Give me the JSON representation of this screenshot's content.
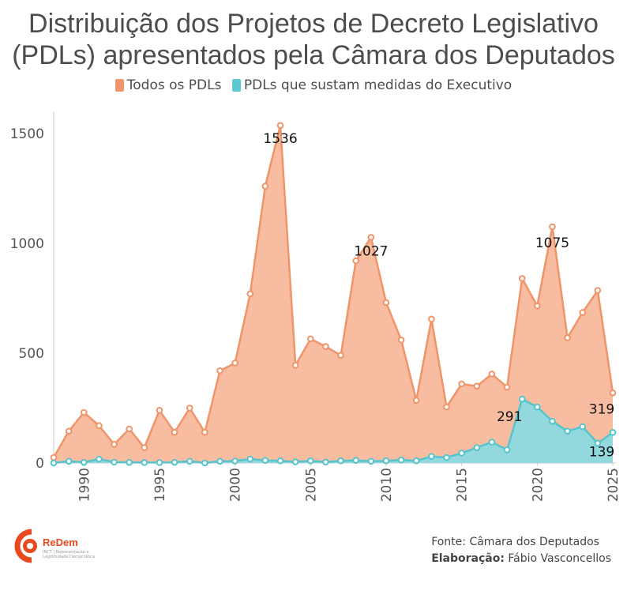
{
  "title_line1": "Distribuição dos Projetos de Decreto Legislativo",
  "title_line2": "(PDLs) apresentados pela Câmara dos Deputados",
  "legend": [
    {
      "label": "Todos os PDLs",
      "color": "#f2956b"
    },
    {
      "label": "PDLs que sustam medidas do Executivo",
      "color": "#5cc8d0"
    }
  ],
  "footer": {
    "source": "Fonte: Câmara dos Deputados",
    "credit_label": "Elaboração:",
    "credit_name": "Fábio Vasconcellos"
  },
  "logo": {
    "name": "ReDem",
    "subtitle": "INCT | Representação e Legitimidade Democrática"
  },
  "chart_data": {
    "type": "area",
    "title": "Distribuição dos Projetos de Decreto Legislativo (PDLs) apresentados pela Câmara dos Deputados",
    "x": [
      1988,
      1989,
      1990,
      1991,
      1992,
      1993,
      1994,
      1995,
      1996,
      1997,
      1998,
      1999,
      2000,
      2001,
      2002,
      2003,
      2004,
      2005,
      2006,
      2007,
      2008,
      2009,
      2010,
      2011,
      2012,
      2013,
      2014,
      2015,
      2016,
      2017,
      2018,
      2019,
      2020,
      2021,
      2022,
      2023,
      2024,
      2025
    ],
    "series": [
      {
        "name": "Todos os PDLs",
        "color": "#f2956b",
        "values": [
          25,
          145,
          230,
          170,
          85,
          155,
          70,
          240,
          140,
          250,
          140,
          420,
          455,
          770,
          1260,
          1536,
          445,
          565,
          530,
          490,
          920,
          1027,
          730,
          560,
          285,
          655,
          255,
          360,
          350,
          405,
          345,
          840,
          715,
          1075,
          570,
          685,
          785,
          319
        ]
      },
      {
        "name": "PDLs que sustam medidas do Executivo",
        "color": "#5cc8d0",
        "values": [
          0,
          8,
          3,
          18,
          4,
          3,
          2,
          2,
          3,
          8,
          0,
          8,
          9,
          18,
          12,
          10,
          5,
          10,
          4,
          10,
          12,
          8,
          10,
          14,
          10,
          30,
          25,
          45,
          70,
          95,
          60,
          291,
          255,
          190,
          145,
          165,
          90,
          139
        ]
      }
    ],
    "annotations": [
      {
        "x": 2003,
        "label": "1536"
      },
      {
        "x": 2009,
        "label": "1027"
      },
      {
        "x": 2021,
        "label": "1075"
      },
      {
        "x": 2019,
        "label": "291"
      },
      {
        "x": 2025,
        "label": "319"
      },
      {
        "x": 2025,
        "label": "139"
      }
    ],
    "yticks": [
      "0",
      "500",
      "1000",
      "1500"
    ],
    "ytick_values": [
      0,
      500,
      1000,
      1500
    ],
    "xticks": [
      "1990",
      "1995",
      "2000",
      "2005",
      "2010",
      "2015",
      "2020",
      "2025"
    ],
    "xtick_values": [
      1990,
      1995,
      2000,
      2005,
      2010,
      2015,
      2020,
      2025
    ],
    "ylim": [
      0,
      1600
    ],
    "xlim": [
      1988,
      2025
    ],
    "xlabel": "",
    "ylabel": "",
    "grid": false,
    "legend_position": "top"
  }
}
